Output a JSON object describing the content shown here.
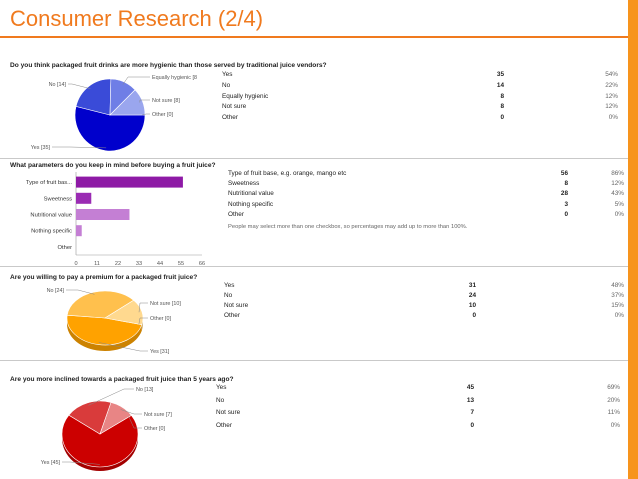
{
  "slide": {
    "title": "Consumer Research (2/4)",
    "accent_color": "#f07a1e"
  },
  "chart_data": [
    {
      "type": "pie",
      "title": "Do you think packaged fruit drinks are more hygienic than those served by traditional juice vendors?",
      "colors": [
        "#0000cc",
        "#3a4bd8",
        "#6f7ee6",
        "#9aa6ee",
        "#c3c9f5"
      ],
      "slices": [
        {
          "label": "Yes",
          "value": 35,
          "percent": "54%",
          "callout": "Yes [35]"
        },
        {
          "label": "No",
          "value": 14,
          "percent": "22%",
          "callout": "No [14]"
        },
        {
          "label": "Equally hygienic",
          "value": 8,
          "percent": "12%",
          "callout": "Equally hygienic [8"
        },
        {
          "label": "Not sure",
          "value": 8,
          "percent": "12%",
          "callout": "Not sure [8]"
        },
        {
          "label": "Other",
          "value": 0,
          "percent": "0%",
          "callout": "Other [0]"
        }
      ]
    },
    {
      "type": "bar",
      "orientation": "horizontal",
      "title": "What parameters do you keep in mind before buying a fruit juice?",
      "colors": [
        "#8e1aa6",
        "#9a2bb3",
        "#c47fd4",
        "#c47fd4",
        "#c47fd4"
      ],
      "categories": [
        "Type of fruit bas...",
        "Sweetness",
        "Nutritional value",
        "Nothing specific",
        "Other"
      ],
      "values": [
        56,
        8,
        28,
        3,
        0
      ],
      "xticks": [
        "0",
        "11",
        "22",
        "33",
        "44",
        "55",
        "66"
      ],
      "xlim": [
        0,
        66
      ],
      "table": [
        {
          "label": "Type of fruit base, e.g. orange, mango etc",
          "value": "56",
          "percent": "86%"
        },
        {
          "label": "Sweetness",
          "value": "8",
          "percent": "12%"
        },
        {
          "label": "Nutritional value",
          "value": "28",
          "percent": "43%"
        },
        {
          "label": "Nothing specific",
          "value": "3",
          "percent": "5%"
        },
        {
          "label": "Other",
          "value": "0",
          "percent": "0%"
        }
      ],
      "note": "People may select more than one checkbox, so percentages may add up to more than 100%."
    },
    {
      "type": "pie",
      "title": "Are you willing to pay a premium for a packaged fruit juice?",
      "colors": [
        "#ffa200",
        "#ffc04d",
        "#ffd98f",
        "#ffe8bf"
      ],
      "slices": [
        {
          "label": "Yes",
          "value": 31,
          "percent": "48%",
          "callout": "Yes [31]"
        },
        {
          "label": "No",
          "value": 24,
          "percent": "37%",
          "callout": "No [24]"
        },
        {
          "label": "Not sure",
          "value": 10,
          "percent": "15%",
          "callout": "Not sure [10]"
        },
        {
          "label": "Other",
          "value": 0,
          "percent": "0%",
          "callout": "Other [0]"
        }
      ]
    },
    {
      "type": "pie",
      "title": "Are you more inclined towards a packaged fruit juice than 5 years ago?",
      "colors": [
        "#cc0000",
        "#d93b3b",
        "#e88585",
        "#f3bcbc"
      ],
      "slices": [
        {
          "label": "Yes",
          "value": 45,
          "percent": "69%",
          "callout": "Yes [45]"
        },
        {
          "label": "No",
          "value": 13,
          "percent": "20%",
          "callout": "No [13]"
        },
        {
          "label": "Not sure",
          "value": 7,
          "percent": "11%",
          "callout": "Not sure [7]"
        },
        {
          "label": "Other",
          "value": 0,
          "percent": "0%",
          "callout": "Other [0]"
        }
      ]
    }
  ]
}
